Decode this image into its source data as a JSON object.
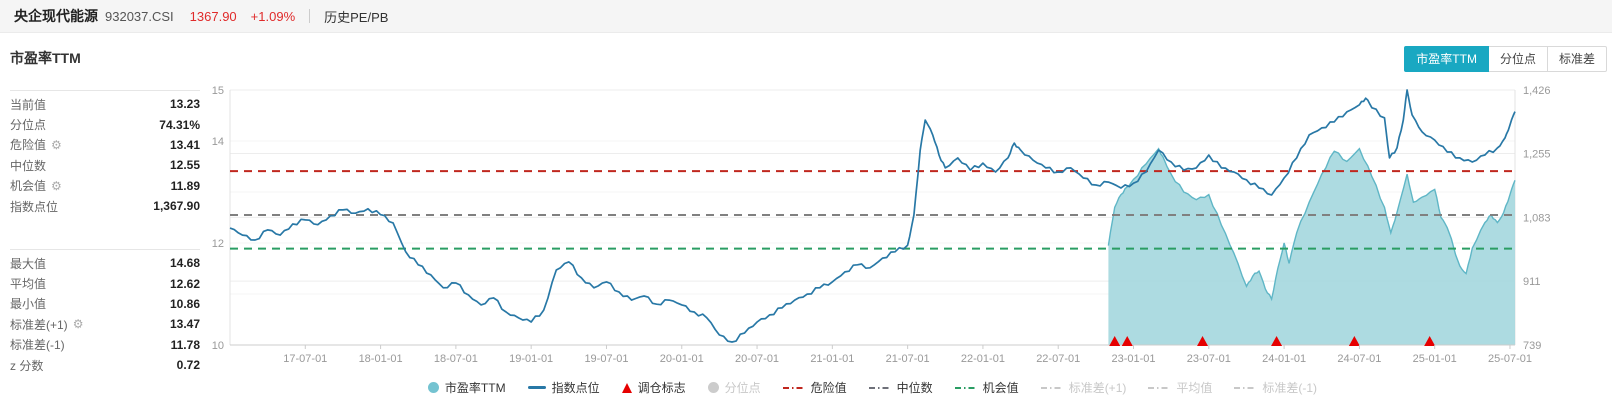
{
  "header": {
    "title": "央企现代能源",
    "code": "932037.CSI",
    "price": "1367.90",
    "change": "+1.09%",
    "nav": "历史PE/PB"
  },
  "panel": {
    "title": "市盈率TTM",
    "stats_primary": [
      {
        "label": "当前值",
        "gear": false,
        "value": "13.23"
      },
      {
        "label": "分位点",
        "gear": false,
        "value": "74.31%"
      },
      {
        "label": "危险值",
        "gear": true,
        "value": "13.41"
      },
      {
        "label": "中位数",
        "gear": false,
        "value": "12.55"
      },
      {
        "label": "机会值",
        "gear": true,
        "value": "11.89"
      },
      {
        "label": "指数点位",
        "gear": false,
        "value": "1,367.90"
      }
    ],
    "stats_secondary": [
      {
        "label": "最大值",
        "gear": false,
        "value": "14.68"
      },
      {
        "label": "平均值",
        "gear": false,
        "value": "12.62"
      },
      {
        "label": "最小值",
        "gear": false,
        "value": "10.86"
      },
      {
        "label": "标准差(+1)",
        "gear": true,
        "value": "13.47"
      },
      {
        "label": "标准差(-1)",
        "gear": false,
        "value": "11.78"
      },
      {
        "label": "z 分数",
        "gear": false,
        "value": "0.72"
      }
    ]
  },
  "view_tabs": [
    {
      "label": "市盈率TTM",
      "active": true
    },
    {
      "label": "分位点",
      "active": false
    },
    {
      "label": "标准差",
      "active": false
    }
  ],
  "colors": {
    "accent_teal": "#19a8c2",
    "quote_red": "#e02a2a",
    "pe_area_fill": "#a6d8de",
    "pe_area_stroke": "#5fb6c6",
    "index_line": "#2878a6",
    "marker_red": "#e60000",
    "danger_line": "#c0271f",
    "median_line": "#808080",
    "chance_line": "#2a9d63",
    "disabled_gray": "#c8c8c8",
    "axis_text": "#999999",
    "grid_major": "#ededed",
    "grid_minor": "#f5f5f5",
    "axis_line": "#cccccc",
    "plot_border": "#e3e3e3"
  },
  "chart_data": {
    "type": "line",
    "title": "市盈率TTM",
    "x_axis": {
      "min_month": 0,
      "max_month": 102.4,
      "epoch": "2017-01-01",
      "ticks": [
        {
          "m": 6,
          "label": "17-07-01"
        },
        {
          "m": 12,
          "label": "18-01-01"
        },
        {
          "m": 18,
          "label": "18-07-01"
        },
        {
          "m": 24,
          "label": "19-01-01"
        },
        {
          "m": 30,
          "label": "19-07-01"
        },
        {
          "m": 36,
          "label": "20-01-01"
        },
        {
          "m": 42,
          "label": "20-07-01"
        },
        {
          "m": 48,
          "label": "21-01-01"
        },
        {
          "m": 54,
          "label": "21-07-01"
        },
        {
          "m": 60,
          "label": "22-01-01"
        },
        {
          "m": 66,
          "label": "22-07-01"
        },
        {
          "m": 72,
          "label": "23-01-01"
        },
        {
          "m": 78,
          "label": "23-07-01"
        },
        {
          "m": 84,
          "label": "24-01-01"
        },
        {
          "m": 90,
          "label": "24-07-01"
        },
        {
          "m": 96,
          "label": "25-01-01"
        },
        {
          "m": 102,
          "label": "25-07-01"
        }
      ]
    },
    "left_axis": {
      "min": 10,
      "max": 15,
      "ticks": [
        {
          "v": 15,
          "label": "15"
        },
        {
          "v": 14,
          "label": "14"
        },
        {
          "v": 12,
          "label": "12"
        },
        {
          "v": 10,
          "label": "10"
        }
      ],
      "minor_grid_values": [
        14,
        13,
        12,
        11
      ]
    },
    "right_axis": {
      "min": 739,
      "max": 1426,
      "ticks": [
        {
          "v": 1426,
          "label": "1,426"
        },
        {
          "v": 1255,
          "label": "1,255"
        },
        {
          "v": 1083,
          "label": "1,083"
        },
        {
          "v": 911,
          "label": "911"
        },
        {
          "v": 739,
          "label": "739"
        }
      ]
    },
    "series": [
      {
        "name": "指数点位",
        "kind": "line",
        "axis": "right",
        "color": "#2878a6",
        "points": [
          [
            0,
            1054
          ],
          [
            1,
            1035
          ],
          [
            2,
            1022
          ],
          [
            3,
            1049
          ],
          [
            4,
            1035
          ],
          [
            5,
            1065
          ],
          [
            6,
            1076
          ],
          [
            7,
            1063
          ],
          [
            8,
            1087
          ],
          [
            9,
            1103
          ],
          [
            10,
            1094
          ],
          [
            11,
            1106
          ],
          [
            12,
            1090
          ],
          [
            13,
            1068
          ],
          [
            14,
            990
          ],
          [
            15,
            955
          ],
          [
            16,
            928
          ],
          [
            17,
            893
          ],
          [
            18,
            906
          ],
          [
            19,
            874
          ],
          [
            20,
            847
          ],
          [
            21,
            866
          ],
          [
            22,
            828
          ],
          [
            23,
            812
          ],
          [
            24,
            801
          ],
          [
            25,
            833
          ],
          [
            26,
            941
          ],
          [
            27,
            963
          ],
          [
            28,
            920
          ],
          [
            29,
            893
          ],
          [
            30,
            909
          ],
          [
            31,
            882
          ],
          [
            32,
            860
          ],
          [
            33,
            871
          ],
          [
            34,
            849
          ],
          [
            35,
            860
          ],
          [
            36,
            847
          ],
          [
            37,
            828
          ],
          [
            38,
            812
          ],
          [
            39,
            766
          ],
          [
            40,
            747
          ],
          [
            41,
            771
          ],
          [
            42,
            801
          ],
          [
            43,
            820
          ],
          [
            44,
            839
          ],
          [
            45,
            860
          ],
          [
            46,
            876
          ],
          [
            47,
            893
          ],
          [
            48,
            909
          ],
          [
            49,
            936
          ],
          [
            50,
            955
          ],
          [
            51,
            947
          ],
          [
            52,
            973
          ],
          [
            53,
            990
          ],
          [
            54,
            1008
          ],
          [
            54.5,
            1089
          ],
          [
            55,
            1264
          ],
          [
            55.4,
            1345
          ],
          [
            56,
            1305
          ],
          [
            56.5,
            1251
          ],
          [
            57,
            1216
          ],
          [
            58,
            1243
          ],
          [
            59,
            1210
          ],
          [
            60,
            1229
          ],
          [
            61,
            1205
          ],
          [
            62,
            1243
          ],
          [
            62.5,
            1283
          ],
          [
            63,
            1264
          ],
          [
            64,
            1237
          ],
          [
            65,
            1216
          ],
          [
            66,
            1205
          ],
          [
            67,
            1216
          ],
          [
            68,
            1189
          ],
          [
            69,
            1170
          ],
          [
            70,
            1178
          ],
          [
            71,
            1162
          ],
          [
            72,
            1175
          ],
          [
            73,
            1205
          ],
          [
            74,
            1264
          ],
          [
            75,
            1232
          ],
          [
            76,
            1210
          ],
          [
            77,
            1216
          ],
          [
            78,
            1251
          ],
          [
            79,
            1216
          ],
          [
            80,
            1205
          ],
          [
            81,
            1184
          ],
          [
            82,
            1162
          ],
          [
            83,
            1143
          ],
          [
            84,
            1189
          ],
          [
            85,
            1243
          ],
          [
            86,
            1305
          ],
          [
            87,
            1324
          ],
          [
            88,
            1340
          ],
          [
            89,
            1367
          ],
          [
            90,
            1386
          ],
          [
            90.5,
            1404
          ],
          [
            91,
            1378
          ],
          [
            92,
            1351
          ],
          [
            92.4,
            1243
          ],
          [
            93,
            1270
          ],
          [
            93.5,
            1345
          ],
          [
            93.8,
            1426
          ],
          [
            94.2,
            1359
          ],
          [
            95,
            1313
          ],
          [
            96,
            1291
          ],
          [
            97,
            1259
          ],
          [
            98,
            1243
          ],
          [
            99,
            1232
          ],
          [
            100,
            1251
          ],
          [
            101,
            1270
          ],
          [
            101.6,
            1297
          ],
          [
            102,
            1332
          ],
          [
            102.4,
            1367.9
          ]
        ]
      },
      {
        "name": "市盈率TTM",
        "kind": "area",
        "axis": "left",
        "color": "#5fb6c6",
        "fill": "#a6d8de",
        "points": [
          [
            70,
            11.95
          ],
          [
            70.5,
            12.7
          ],
          [
            71,
            12.95
          ],
          [
            71.5,
            13.1
          ],
          [
            72,
            13.25
          ],
          [
            73,
            13.55
          ],
          [
            74,
            13.85
          ],
          [
            74.5,
            13.6
          ],
          [
            75,
            13.35
          ],
          [
            76,
            13.0
          ],
          [
            77,
            12.85
          ],
          [
            78,
            12.95
          ],
          [
            79,
            12.35
          ],
          [
            80,
            11.8
          ],
          [
            81,
            11.15
          ],
          [
            81.5,
            11.35
          ],
          [
            82,
            11.45
          ],
          [
            82.5,
            11.1
          ],
          [
            83,
            10.9
          ],
          [
            83.5,
            11.5
          ],
          [
            84,
            12.0
          ],
          [
            84.4,
            11.6
          ],
          [
            85,
            12.2
          ],
          [
            86,
            12.8
          ],
          [
            87,
            13.35
          ],
          [
            88,
            13.8
          ],
          [
            89,
            13.6
          ],
          [
            90,
            13.85
          ],
          [
            91,
            13.3
          ],
          [
            92,
            12.7
          ],
          [
            92.5,
            12.2
          ],
          [
            93,
            12.6
          ],
          [
            93.8,
            13.35
          ],
          [
            94.3,
            12.8
          ],
          [
            95,
            12.9
          ],
          [
            96,
            13.05
          ],
          [
            96.5,
            12.5
          ],
          [
            97,
            12.3
          ],
          [
            98,
            11.55
          ],
          [
            98.5,
            11.4
          ],
          [
            99,
            11.9
          ],
          [
            100,
            12.4
          ],
          [
            100.5,
            12.55
          ],
          [
            101,
            12.4
          ],
          [
            101.5,
            12.6
          ],
          [
            102,
            12.95
          ],
          [
            102.4,
            13.23
          ]
        ]
      }
    ],
    "hlines": [
      {
        "name": "危险值",
        "value": 13.41,
        "axis": "left",
        "color": "#c0271f"
      },
      {
        "name": "中位数",
        "value": 12.55,
        "axis": "left",
        "color": "#808080"
      },
      {
        "name": "机会值",
        "value": 11.89,
        "axis": "left",
        "color": "#2a9d63"
      }
    ],
    "markers": {
      "name": "调仓标志",
      "color": "#e60000",
      "months": [
        70.5,
        71.5,
        77.5,
        83.4,
        89.6,
        95.6
      ]
    }
  },
  "legend": [
    {
      "label": "市盈率TTM",
      "icon": "circle",
      "color": "#74c3d1",
      "disabled": false
    },
    {
      "label": "指数点位",
      "icon": "line",
      "color": "#2878a6",
      "disabled": false
    },
    {
      "label": "调仓标志",
      "icon": "triangle",
      "color": "#e60000",
      "disabled": false
    },
    {
      "label": "分位点",
      "icon": "circle",
      "color": "#cccccc",
      "disabled": true
    },
    {
      "label": "危险值",
      "icon": "dashdot",
      "color": "#c0271f",
      "disabled": false
    },
    {
      "label": "中位数",
      "icon": "dashdot",
      "color": "#6e7079",
      "disabled": false
    },
    {
      "label": "机会值",
      "icon": "dashdot",
      "color": "#2a9d63",
      "disabled": false
    },
    {
      "label": "标准差(+1)",
      "icon": "dashdot",
      "color": "#c8c8c8",
      "disabled": true
    },
    {
      "label": "平均值",
      "icon": "dashdot",
      "color": "#c8c8c8",
      "disabled": true
    },
    {
      "label": "标准差(-1)",
      "icon": "dashdot",
      "color": "#c8c8c8",
      "disabled": true
    }
  ]
}
